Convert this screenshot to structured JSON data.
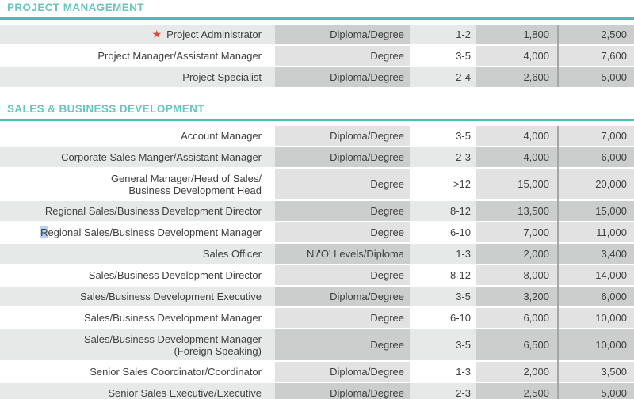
{
  "colors": {
    "teal_header_text": "#68c5c1",
    "teal_rule": "#4cbcb6",
    "row_alt_gray": "#e7e8e8",
    "column_shade_on_white": "#dedede",
    "column_shade_on_gray": "#cccccc",
    "column_divider_gray": "#a6a6a6",
    "body_text": "#3f3f3f",
    "star_red": "#d94f45",
    "selection_blue": "#b5d3ee"
  },
  "icons": {
    "star_icon": "★"
  },
  "table": {
    "sections": [
      {
        "title": "PROJECT MANAGEMENT",
        "rows": [
          {
            "title": "Project Administrator",
            "starred": true,
            "qualification": "Diploma/Degree",
            "experience": "1-2",
            "min": "1,800",
            "max": "2,500"
          },
          {
            "title": "Project Manager/Assistant Manager",
            "qualification": "Degree",
            "experience": "3-5",
            "min": "4,000",
            "max": "7,600"
          },
          {
            "title": "Project Specialist",
            "qualification": "Diploma/Degree",
            "experience": "2-4",
            "min": "2,600",
            "max": "5,000"
          }
        ]
      },
      {
        "title": "SALES & BUSINESS DEVELOPMENT",
        "rows": [
          {
            "title": "Account Manager",
            "qualification": "Diploma/Degree",
            "experience": "3-5",
            "min": "4,000",
            "max": "7,000"
          },
          {
            "title": "Corporate Sales Manger/Assistant Manager",
            "qualification": "Diploma/Degree",
            "experience": "2-3",
            "min": "4,000",
            "max": "6,000"
          },
          {
            "title": "General Manager/Head of Sales/",
            "title2": "Business Development Head",
            "qualification": "Degree",
            "experience": ">12",
            "min": "15,000",
            "max": "20,000"
          },
          {
            "title": "Regional Sales/Business Development Director",
            "qualification": "Degree",
            "experience": "8-12",
            "min": "13,500",
            "max": "15,000"
          },
          {
            "title": "Regional Sales/Business Development Manager",
            "first_char_selected": true,
            "qualification": "Degree",
            "experience": "6-10",
            "min": "7,000",
            "max": "11,000"
          },
          {
            "title": "Sales Officer",
            "qualification": "N'/'O' Levels/Diploma",
            "experience": "1-3",
            "min": "2,000",
            "max": "3,400"
          },
          {
            "title": "Sales/Business Development Director",
            "qualification": "Degree",
            "experience": "8-12",
            "min": "8,000",
            "max": "14,000"
          },
          {
            "title": "Sales/Business Development Executive",
            "qualification": "Diploma/Degree",
            "experience": "3-5",
            "min": "3,200",
            "max": "6,000"
          },
          {
            "title": "Sales/Business Development Manager",
            "qualification": "Degree",
            "experience": "6-10",
            "min": "6,000",
            "max": "10,000"
          },
          {
            "title": "Sales/Business Development Manager",
            "title2": "(Foreign Speaking)",
            "qualification": "Degree",
            "experience": "3-5",
            "min": "6,500",
            "max": "10,000"
          },
          {
            "title": "Senior Sales Coordinator/Coordinator",
            "qualification": "Diploma/Degree",
            "experience": "1-3",
            "min": "2,000",
            "max": "3,500"
          },
          {
            "title": "Senior Sales Executive/Executive",
            "qualification": "Diploma/Degree",
            "experience": "2-3",
            "min": "2,500",
            "max": "5,000"
          }
        ]
      }
    ]
  }
}
